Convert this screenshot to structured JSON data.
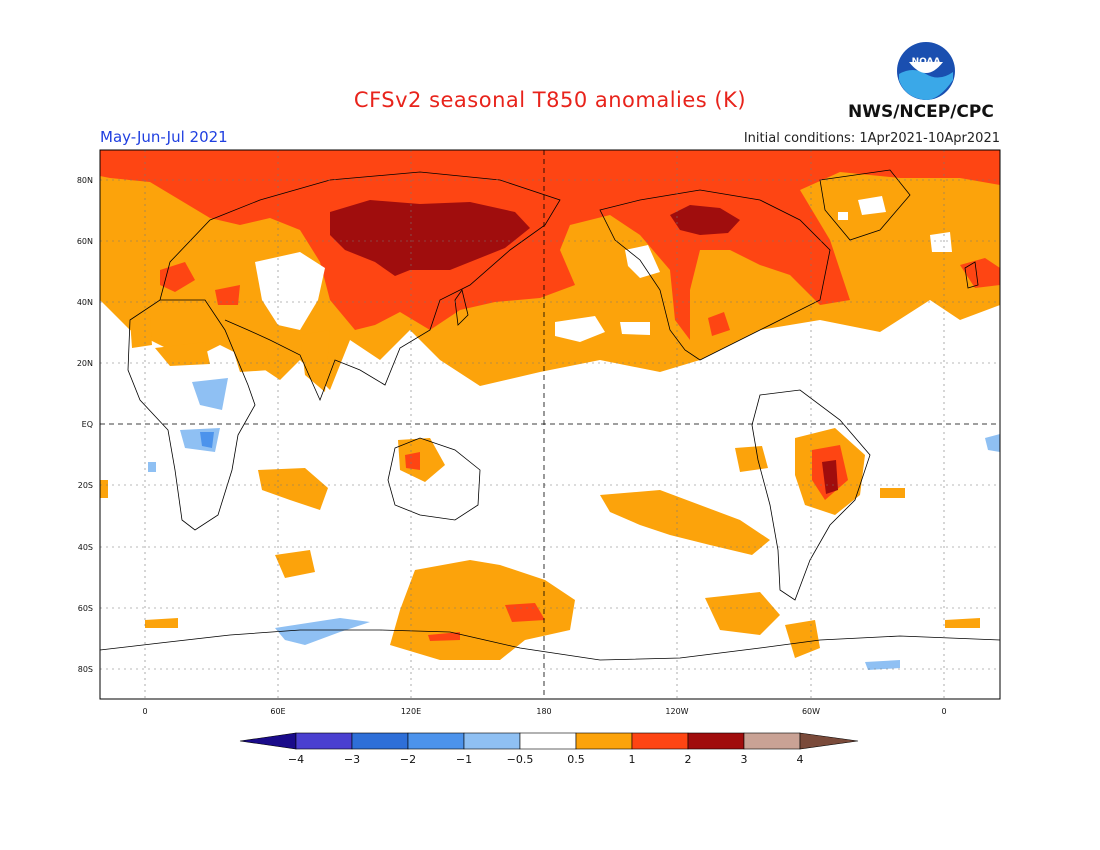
{
  "header": {
    "title": "CFSv2 seasonal T850 anomalies (K)",
    "season": "May-Jun-Jul 2021",
    "initial_conditions": "Initial conditions: 1Apr2021-10Apr2021",
    "agency": "NWS/NCEP/CPC",
    "logo_text": "NOAA"
  },
  "map": {
    "lat_labels": [
      "80N",
      "60N",
      "40N",
      "20N",
      "EQ",
      "20S",
      "40S",
      "60S",
      "80S"
    ],
    "lon_labels": [
      "0",
      "60E",
      "120E",
      "180",
      "120W",
      "60W",
      "0"
    ]
  },
  "colorbar": {
    "labels": [
      "−4",
      "−3",
      "−2",
      "−1",
      "−0.5",
      "0.5",
      "1",
      "2",
      "3",
      "4"
    ],
    "colors": [
      "#1a0b8a",
      "#4a3fd0",
      "#2e6fd8",
      "#4c93ec",
      "#8fc0f3",
      "#ffffff",
      "#fca30b",
      "#fe4513",
      "#a00d0d",
      "#c9a295",
      "#7a4a3a"
    ]
  }
}
